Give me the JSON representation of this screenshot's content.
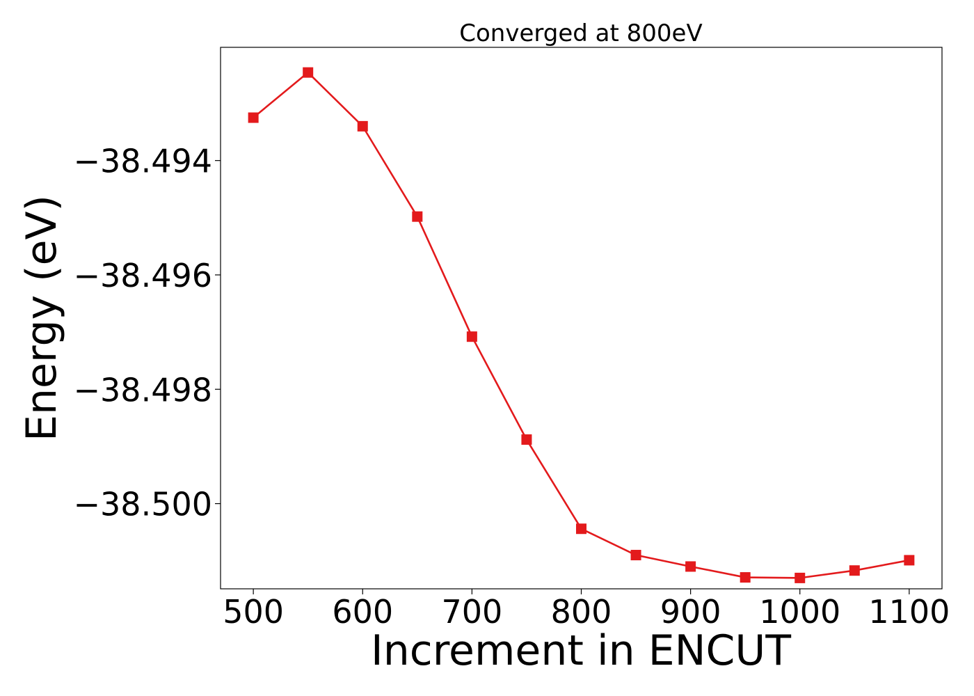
{
  "chart_data": {
    "type": "line",
    "title": "Converged at 800eV",
    "xlabel": "Increment in ENCUT",
    "ylabel": "Energy (eV)",
    "x": [
      500,
      550,
      600,
      650,
      700,
      750,
      800,
      850,
      900,
      950,
      1000,
      1050,
      1100
    ],
    "series": [
      {
        "values": [
          -38.49325,
          -38.49246,
          -38.4934,
          -38.49498,
          -38.49708,
          -38.49888,
          -38.50044,
          -38.5009,
          -38.5011,
          -38.50129,
          -38.5013,
          -38.50117,
          -38.50099
        ],
        "color": "#e31a1c",
        "marker": "square"
      }
    ],
    "xlim": [
      470,
      1130
    ],
    "ylim": [
      -38.50149,
      -38.49202
    ],
    "xticks": [
      500,
      600,
      700,
      800,
      900,
      1000,
      1100
    ],
    "xtick_labels": [
      "500",
      "600",
      "700",
      "800",
      "900",
      "1000",
      "1100"
    ],
    "yticks": [
      -38.494,
      -38.496,
      -38.498,
      -38.5
    ],
    "ytick_labels": [
      "−38.494",
      "−38.496",
      "−38.498",
      "−38.500"
    ],
    "grid": false,
    "legend": false
  }
}
